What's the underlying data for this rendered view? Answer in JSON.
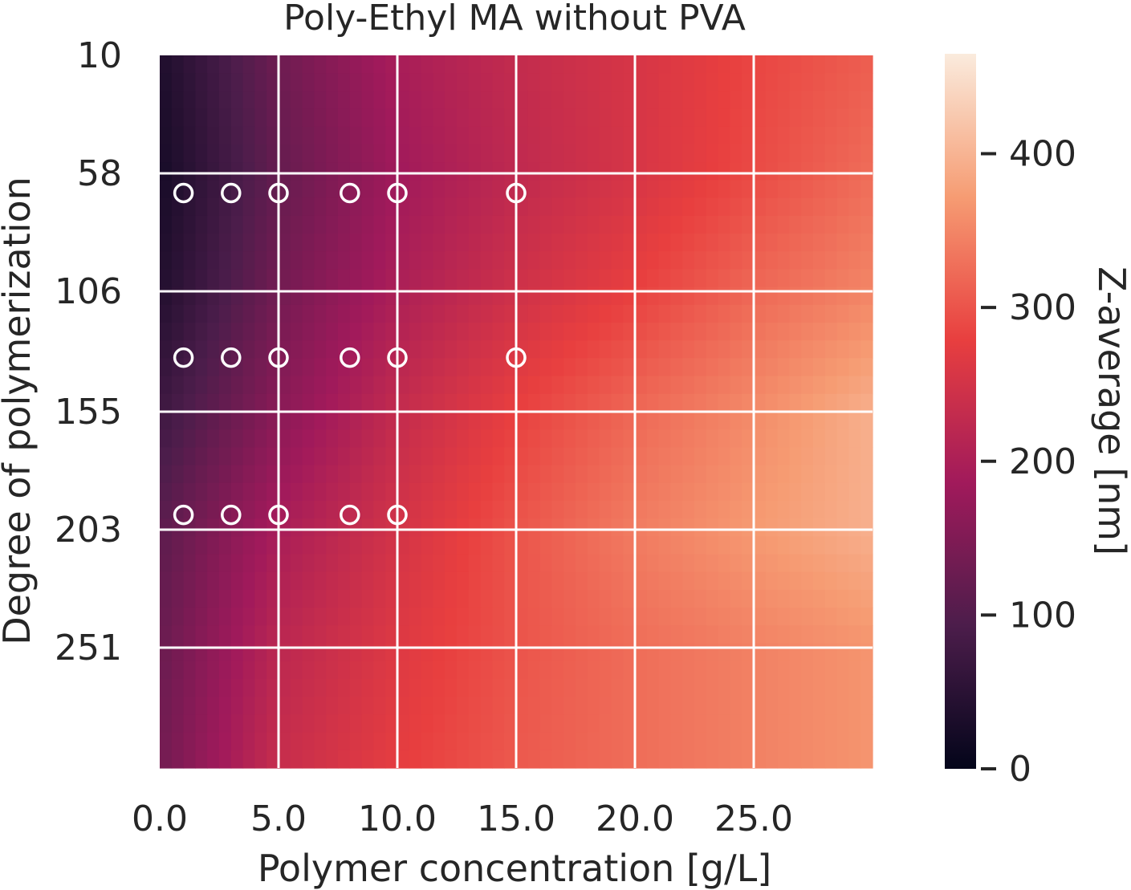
{
  "chart_data": {
    "type": "heatmap",
    "title": "Poly-Ethyl MA without PVA",
    "xlabel": "Polymer concentration [g/L]",
    "ylabel": "Degree of polymerization",
    "xlim": [
      0,
      30
    ],
    "ylim": [
      10,
      300
    ],
    "x_ticks": [
      "0.0",
      "5.0",
      "10.0",
      "15.0",
      "20.0",
      "25.0"
    ],
    "y_ticks": [
      "10",
      "58",
      "106",
      "155",
      "203",
      "251"
    ],
    "colorbar": {
      "label": "Z-average [nm]",
      "range": [
        0,
        465
      ],
      "ticks": [
        "0",
        "100",
        "200",
        "300",
        "400"
      ],
      "colormap": "rocket",
      "colors": [
        "#03051a",
        "#4c1d4b",
        "#a11a5b",
        "#e83f3f",
        "#f69c73",
        "#faebdd"
      ]
    },
    "grid": true,
    "surface_samples": {
      "x": [
        0,
        5,
        10,
        15,
        20,
        25,
        30
      ],
      "y": [
        10,
        58,
        106,
        155,
        203,
        251,
        300
      ],
      "z": [
        [
          35,
          130,
          195,
          230,
          255,
          285,
          310
        ],
        [
          25,
          120,
          185,
          225,
          255,
          290,
          325
        ],
        [
          40,
          135,
          200,
          245,
          280,
          320,
          350
        ],
        [
          75,
          160,
          230,
          280,
          320,
          355,
          395
        ],
        [
          110,
          195,
          250,
          300,
          340,
          370,
          395
        ],
        [
          125,
          220,
          265,
          300,
          325,
          345,
          365
        ],
        [
          135,
          235,
          275,
          305,
          325,
          345,
          365
        ]
      ]
    },
    "series": [
      {
        "x": [
          1,
          3,
          5,
          8,
          10,
          15
        ],
        "y": [
          66,
          66,
          66,
          66,
          66,
          66
        ]
      },
      {
        "x": [
          1,
          3,
          5,
          8,
          10,
          15
        ],
        "y": [
          133,
          133,
          133,
          133,
          133,
          133
        ]
      },
      {
        "x": [
          1,
          3,
          5,
          8,
          10
        ],
        "y": [
          197,
          197,
          197,
          197,
          197
        ]
      }
    ]
  }
}
